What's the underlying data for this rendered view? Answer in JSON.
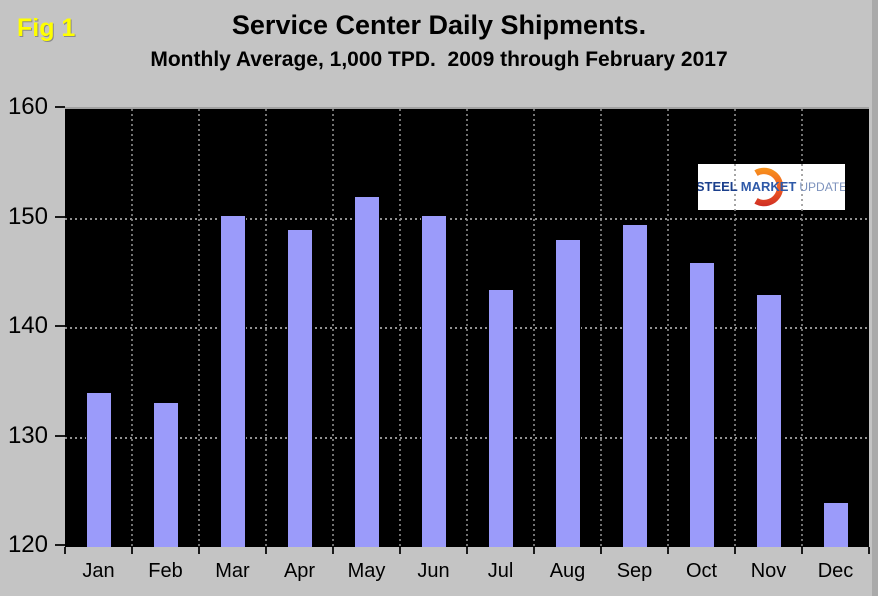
{
  "figure_label": "Fig 1",
  "header": {
    "title": "Service Center Daily Shipments.",
    "subtitle": "Monthly Average, 1,000 TPD.  2009 through February 2017"
  },
  "logo": {
    "word1": "STEEL",
    "word2": "MARKET",
    "word3": "UPDATE"
  },
  "colors": {
    "page_background": "#c4c4c4",
    "plot_background": "#000000",
    "bar_fill": "#9b9bfa",
    "bar_border": "#000000",
    "fig_label": "#ffff00",
    "gridline": "#a8a8a8",
    "logo_orange_top": "#f7941d",
    "logo_red_bottom": "#cf2e24"
  },
  "chart_data": {
    "type": "bar",
    "title": "Service Center Daily Shipments.",
    "subtitle": "Monthly Average, 1,000 TPD.  2009 through February 2017",
    "categories": [
      "Jan",
      "Feb",
      "Mar",
      "Apr",
      "May",
      "Jun",
      "Jul",
      "Aug",
      "Sep",
      "Oct",
      "Nov",
      "Dec"
    ],
    "values": [
      134.2,
      133.2,
      150.3,
      149.0,
      152.1,
      150.3,
      143.6,
      148.1,
      149.5,
      146.0,
      143.1,
      124.1
    ],
    "xlabel": "",
    "ylabel": "",
    "ylim": [
      120,
      160
    ],
    "yticks": [
      120,
      130,
      140,
      150,
      160
    ],
    "grid_values": [
      130,
      140,
      150
    ],
    "grid": "dotted",
    "legend_position": "none"
  }
}
